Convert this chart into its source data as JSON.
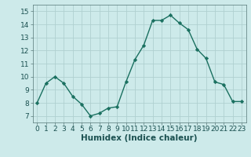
{
  "x": [
    0,
    1,
    2,
    3,
    4,
    5,
    6,
    7,
    8,
    9,
    10,
    11,
    12,
    13,
    14,
    15,
    16,
    17,
    18,
    19,
    20,
    21,
    22,
    23
  ],
  "y": [
    8.0,
    9.5,
    10.0,
    9.5,
    8.5,
    7.9,
    7.0,
    7.2,
    7.6,
    7.7,
    9.6,
    11.3,
    12.4,
    14.3,
    14.3,
    14.7,
    14.1,
    13.6,
    12.1,
    11.4,
    9.6,
    9.4,
    8.1,
    8.1
  ],
  "xlabel": "Humidex (Indice chaleur)",
  "xlim": [
    -0.5,
    23.5
  ],
  "ylim": [
    6.5,
    15.5
  ],
  "yticks": [
    7,
    8,
    9,
    10,
    11,
    12,
    13,
    14,
    15
  ],
  "xticks": [
    0,
    1,
    2,
    3,
    4,
    5,
    6,
    7,
    8,
    9,
    10,
    11,
    12,
    13,
    14,
    15,
    16,
    17,
    18,
    19,
    20,
    21,
    22,
    23
  ],
  "line_color": "#1a7060",
  "marker": "D",
  "marker_size": 2.2,
  "bg_color": "#cdeaea",
  "grid_color": "#b0d0d0",
  "axes_bg": "#cdeaea",
  "xlabel_fontsize": 7.5,
  "tick_fontsize": 6.5,
  "line_width": 1.0
}
